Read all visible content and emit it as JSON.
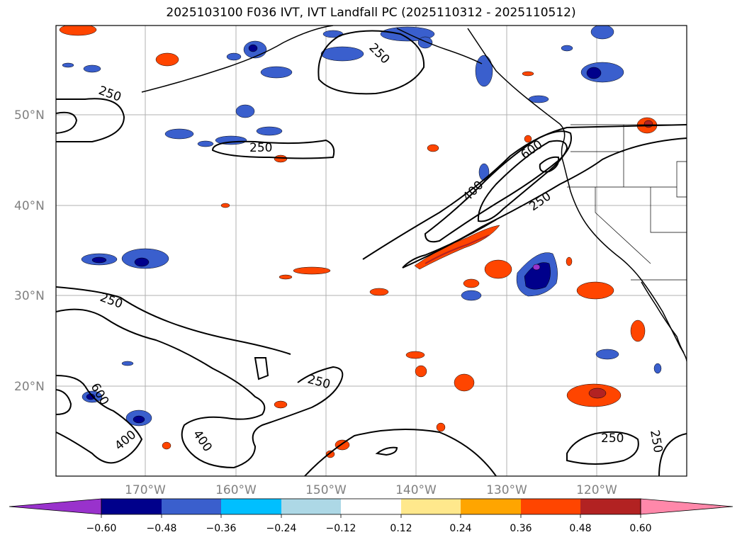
{
  "title": "2025103100 F036 IVT, IVT Landfall PC (2025110312 - 2025110512)",
  "map": {
    "lat_labels": [
      "50°N",
      "40°N",
      "30°N",
      "20°N"
    ],
    "lon_labels": [
      "170°W",
      "160°W",
      "150°W",
      "140°W",
      "130°W",
      "120°W"
    ],
    "contour_levels": [
      "250",
      "400",
      "600"
    ],
    "contour_labels": [
      {
        "text": "250",
        "level": 250
      },
      {
        "text": "250",
        "level": 250
      },
      {
        "text": "250",
        "level": 250
      },
      {
        "text": "250",
        "level": 250
      },
      {
        "text": "250",
        "level": 250
      },
      {
        "text": "250",
        "level": 250
      },
      {
        "text": "250",
        "level": 250
      },
      {
        "text": "250",
        "level": 250
      },
      {
        "text": "400",
        "level": 400
      },
      {
        "text": "400",
        "level": 400
      },
      {
        "text": "400",
        "level": 400
      },
      {
        "text": "600",
        "level": 600
      },
      {
        "text": "600",
        "level": 600
      }
    ]
  },
  "colorbar": {
    "labels": [
      "−0.60",
      "−0.48",
      "−0.36",
      "−0.24",
      "−0.12",
      "0.12",
      "0.24",
      "0.36",
      "0.48",
      "0.60"
    ],
    "colors": [
      "#9932cc",
      "#00008b",
      "#3a5fcd",
      "#00bfff",
      "#add8e6",
      "#ffffff",
      "#ffe88c",
      "#ffa500",
      "#ff4500",
      "#b22222",
      "#ff88aa"
    ]
  }
}
